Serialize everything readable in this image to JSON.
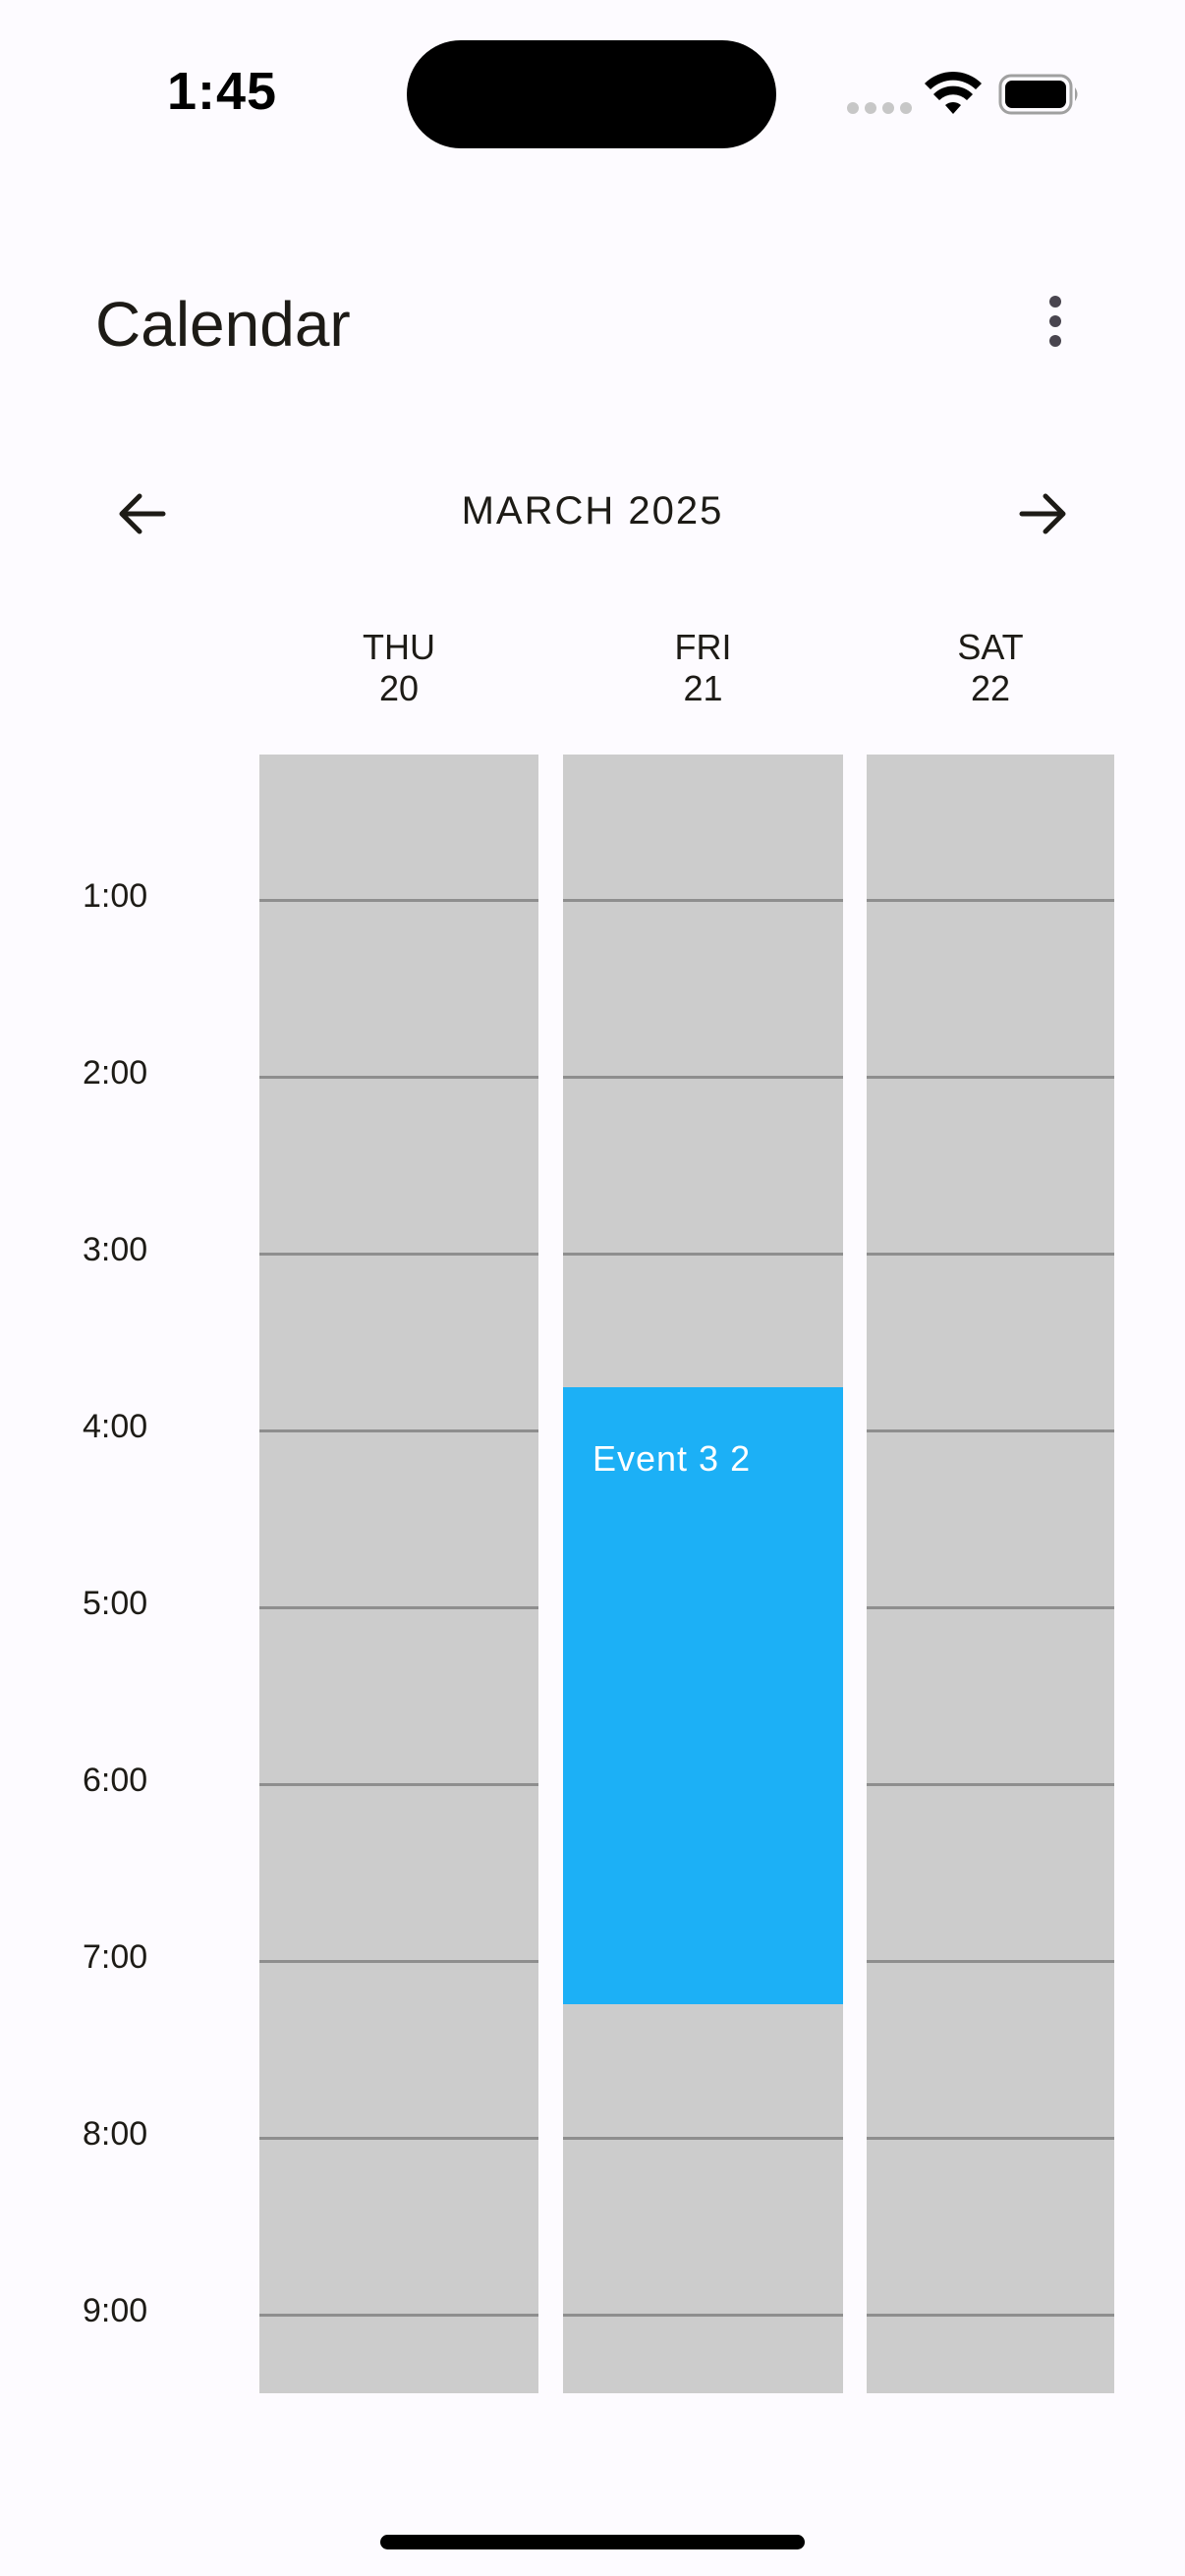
{
  "status_bar": {
    "time": "1:45"
  },
  "app_bar": {
    "title": "Calendar",
    "menu_icon": "more-vert-icon"
  },
  "month_nav": {
    "label": "MARCH 2025",
    "prev_icon": "arrow-left-icon",
    "next_icon": "arrow-right-icon"
  },
  "days": [
    {
      "weekday": "THU",
      "date": "20"
    },
    {
      "weekday": "FRI",
      "date": "21"
    },
    {
      "weekday": "SAT",
      "date": "22"
    }
  ],
  "hours": [
    "1:00",
    "2:00",
    "3:00",
    "4:00",
    "5:00",
    "6:00",
    "7:00",
    "8:00",
    "9:00"
  ],
  "events": [
    {
      "title": "Event 3 2",
      "day": "FRI",
      "color": "#1cb0f6"
    }
  ],
  "colors": {
    "background": "#fdfbff",
    "grid": "#cccccc",
    "event": "#1cb0f6"
  }
}
